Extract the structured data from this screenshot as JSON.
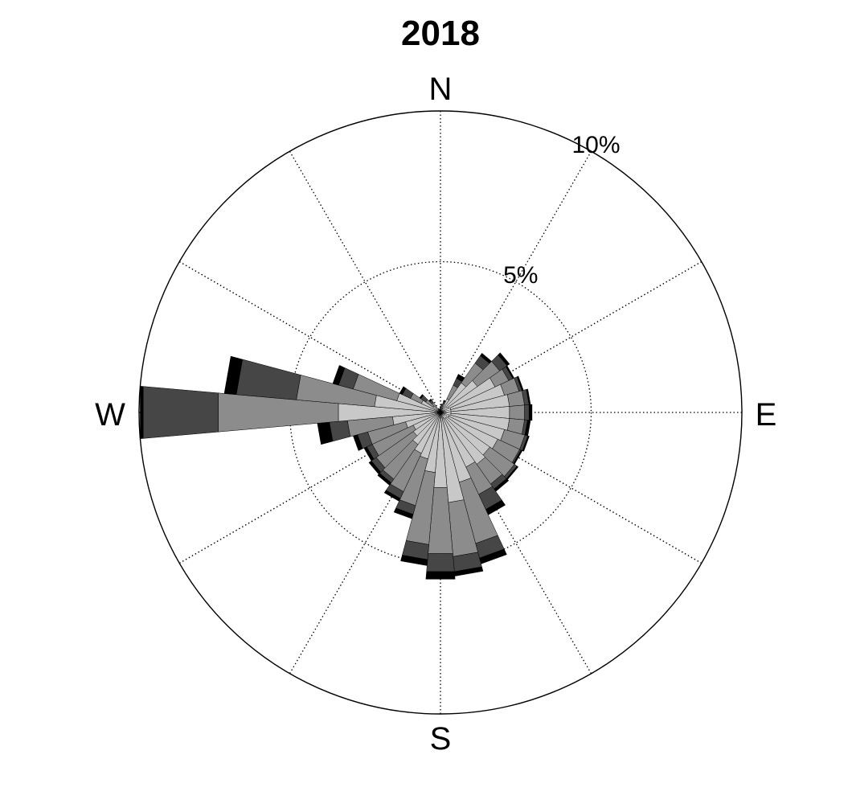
{
  "chart_data": {
    "type": "windrose",
    "title": "2018",
    "direction_labels": [
      "N",
      "E",
      "S",
      "W"
    ],
    "radial_ticks": [
      {
        "value": 5,
        "label": "5%"
      },
      {
        "value": 10,
        "label": "10%"
      }
    ],
    "rmax": 10,
    "sector_width_deg": 10,
    "grid": true,
    "grid_spokes_deg": [
      0,
      30,
      60,
      90,
      120,
      150,
      180,
      210,
      240,
      270,
      300,
      330
    ],
    "bin_colors": [
      "#ffffff",
      "#c8c8c8",
      "#8c8c8c",
      "#464646",
      "#000000"
    ],
    "directions_deg": [
      0,
      10,
      20,
      30,
      40,
      50,
      60,
      70,
      80,
      90,
      100,
      110,
      120,
      130,
      140,
      150,
      160,
      170,
      180,
      190,
      200,
      210,
      220,
      230,
      240,
      250,
      260,
      270,
      280,
      290,
      300,
      310,
      320,
      330,
      340,
      350
    ],
    "cumulative_percent": [
      [
        0.1,
        0.1,
        0.15,
        0.18,
        0.2
      ],
      [
        0.1,
        0.15,
        0.22,
        0.26,
        0.28
      ],
      [
        0.12,
        0.2,
        0.3,
        0.38,
        0.42
      ],
      [
        0.15,
        0.5,
        1.0,
        1.25,
        1.4
      ],
      [
        0.2,
        1.2,
        2.0,
        2.3,
        2.4
      ],
      [
        0.25,
        1.5,
        2.4,
        2.7,
        2.8
      ],
      [
        0.3,
        2.0,
        2.5,
        2.65,
        2.7
      ],
      [
        0.35,
        2.2,
        2.7,
        2.8,
        2.85
      ],
      [
        0.35,
        2.3,
        2.8,
        2.95,
        3.0
      ],
      [
        0.35,
        2.3,
        2.8,
        2.95,
        3.05
      ],
      [
        0.35,
        2.3,
        2.8,
        2.9,
        3.0
      ],
      [
        0.3,
        2.2,
        2.9,
        3.0,
        3.05
      ],
      [
        0.3,
        2.1,
        2.9,
        2.95,
        3.0
      ],
      [
        0.25,
        2.0,
        3.0,
        3.1,
        3.15
      ],
      [
        0.25,
        2.1,
        2.9,
        3.1,
        3.2
      ],
      [
        0.2,
        2.0,
        3.0,
        3.55,
        3.75
      ],
      [
        0.2,
        2.4,
        4.5,
        5.0,
        5.2
      ],
      [
        0.15,
        3.0,
        4.8,
        5.3,
        5.45
      ],
      [
        0.1,
        2.5,
        4.7,
        5.3,
        5.55
      ],
      [
        0.1,
        2.0,
        4.4,
        4.9,
        5.1
      ],
      [
        0.1,
        1.6,
        3.2,
        3.5,
        3.65
      ],
      [
        0.1,
        1.5,
        2.9,
        3.15,
        3.25
      ],
      [
        0.1,
        1.3,
        2.7,
        2.85,
        2.95
      ],
      [
        0.1,
        1.1,
        2.6,
        2.8,
        2.9
      ],
      [
        0.1,
        1.0,
        2.5,
        2.7,
        2.8
      ],
      [
        0.1,
        1.2,
        2.5,
        2.85,
        3.0
      ],
      [
        0.1,
        1.6,
        3.1,
        3.7,
        4.1
      ],
      [
        0.1,
        3.4,
        7.4,
        9.9,
        10.0
      ],
      [
        0.1,
        2.2,
        4.8,
        6.8,
        7.2
      ],
      [
        0.1,
        1.5,
        3.0,
        3.5,
        3.7
      ],
      [
        0.1,
        0.7,
        1.1,
        1.4,
        1.5
      ],
      [
        0.05,
        0.3,
        0.6,
        0.8,
        0.85
      ],
      [
        0.05,
        0.2,
        0.4,
        0.5,
        0.55
      ],
      [
        0.02,
        0.06,
        0.1,
        0.12,
        0.14
      ],
      [
        0.02,
        0.05,
        0.08,
        0.1,
        0.12
      ],
      [
        0.02,
        0.05,
        0.08,
        0.1,
        0.12
      ]
    ]
  }
}
